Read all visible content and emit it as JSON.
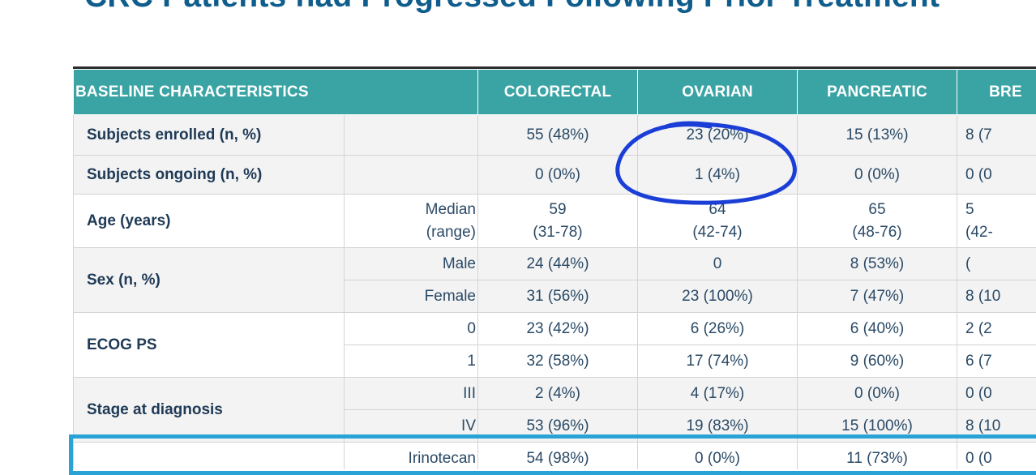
{
  "title": "CRC Patients had Progressed Following Prior Treatment",
  "table": {
    "headers": [
      "BASELINE CHARACTERISTICS",
      "COLORECTAL",
      "OVARIAN",
      "PANCREATIC",
      "BRE"
    ],
    "rows": [
      {
        "label": "Subjects enrolled (n, %)",
        "sub": "",
        "values": [
          "55 (48%)",
          "23 (20%)",
          "15 (13%)",
          "8 (7"
        ]
      },
      {
        "label": "Subjects ongoing (n, %)",
        "sub": "",
        "values": [
          "0 (0%)",
          "1 (4%)",
          "0 (0%)",
          "0 (0"
        ]
      },
      {
        "label": "Age (years)",
        "sub1": "Median",
        "sub2": "(range)",
        "values1": [
          "59",
          "64",
          "65",
          "5"
        ],
        "values2": [
          "(31-78)",
          "(42-74)",
          "(48-76)",
          "(42-"
        ]
      },
      {
        "label": "Sex (n, %)",
        "subs": [
          {
            "sub": "Male",
            "values": [
              "24 (44%)",
              "0",
              "8 (53%)",
              "("
            ]
          },
          {
            "sub": "Female",
            "values": [
              "31 (56%)",
              "23 (100%)",
              "7 (47%)",
              "8 (10"
            ]
          }
        ]
      },
      {
        "label": "ECOG PS",
        "subs": [
          {
            "sub": "0",
            "values": [
              "23 (42%)",
              "6 (26%)",
              "6 (40%)",
              "2 (2"
            ]
          },
          {
            "sub": "1",
            "values": [
              "32 (58%)",
              "17 (74%)",
              "9 (60%)",
              "6 (7"
            ]
          }
        ]
      },
      {
        "label": "Stage at diagnosis",
        "subs": [
          {
            "sub": "III",
            "values": [
              "2 (4%)",
              "4 (17%)",
              "0 (0%)",
              "0 (0"
            ]
          },
          {
            "sub": "IV",
            "values": [
              "53 (96%)",
              "19 (83%)",
              "15 (100%)",
              "8 (10"
            ]
          }
        ]
      },
      {
        "label": "",
        "sub": "Irinotecan",
        "values": [
          "54 (98%)",
          "0 (0%)",
          "11 (73%)",
          "0 (0"
        ]
      }
    ]
  },
  "colors": {
    "header_bg": "#3aa3a3",
    "title": "#0e5d8c",
    "annotation_ink": "#1b3fd6",
    "highlight_box": "#29a3d6"
  }
}
